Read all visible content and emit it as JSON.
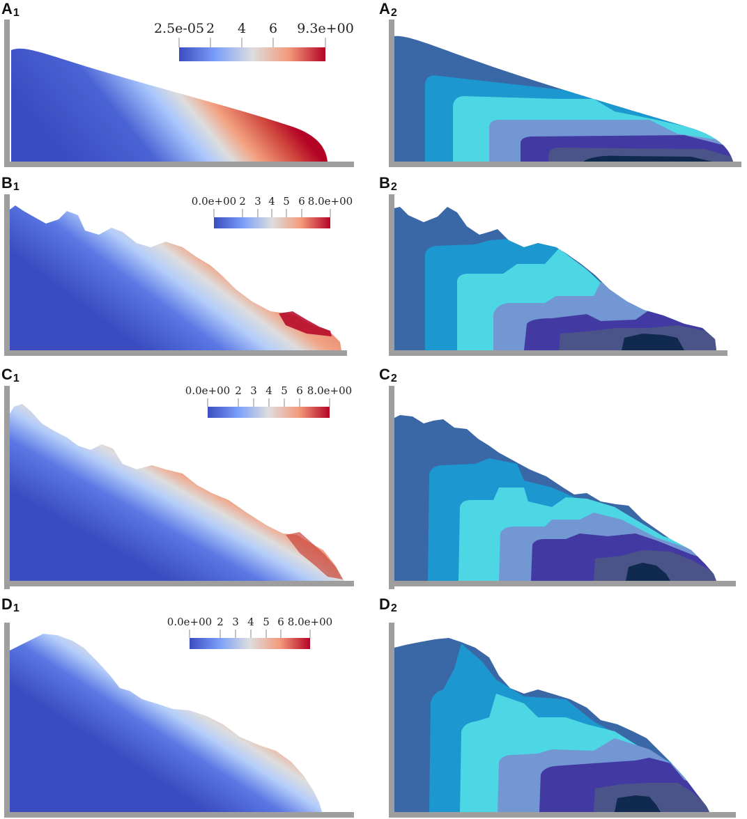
{
  "panels": {
    "A1": {
      "letter": "A",
      "sub": "1"
    },
    "A2": {
      "letter": "A",
      "sub": "2"
    },
    "B1": {
      "letter": "B",
      "sub": "1"
    },
    "B2": {
      "letter": "B",
      "sub": "2"
    },
    "C1": {
      "letter": "C",
      "sub": "1"
    },
    "C2": {
      "letter": "C",
      "sub": "2"
    },
    "D1": {
      "letter": "D",
      "sub": "1"
    },
    "D2": {
      "letter": "D",
      "sub": "2"
    }
  },
  "colorbars": {
    "A": {
      "ticks": [
        "2.5e-05",
        "2",
        "4",
        "6",
        "9.3e+00"
      ]
    },
    "B": {
      "ticks": [
        "0.0e+00",
        "2",
        "3",
        "4",
        "5",
        "6",
        "8.0e+00"
      ]
    },
    "C": {
      "ticks": [
        "0.0e+00",
        "2",
        "3",
        "4",
        "5",
        "6",
        "8.0e+00"
      ]
    },
    "D": {
      "ticks": [
        "0.0e+00",
        "2",
        "3",
        "4",
        "5",
        "6",
        "8.0e+00"
      ]
    }
  },
  "colors": {
    "wall": "#9e9e9e",
    "cool": "#3b4cc0",
    "mid": "#dddddd",
    "warm": "#b40426",
    "zones": [
      "#3a67a6",
      "#1c97cf",
      "#4dd6e3",
      "#7397d3",
      "#4239a3",
      "#4b5488",
      "#0f2a4e"
    ]
  }
}
